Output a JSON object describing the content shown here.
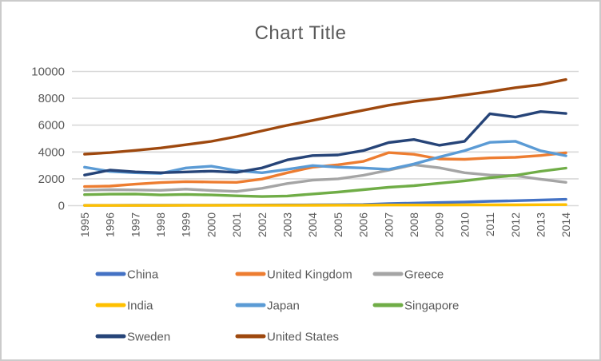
{
  "chart_data": {
    "type": "line",
    "title": "Chart Title",
    "xlabel": "",
    "ylabel": "",
    "ylim": [
      0,
      10000
    ],
    "y_ticks": [
      0,
      2000,
      4000,
      6000,
      8000,
      10000
    ],
    "grid": true,
    "legend_position": "bottom",
    "categories": [
      "1995",
      "1996",
      "1997",
      "1998",
      "1999",
      "2000",
      "2001",
      "2002",
      "2003",
      "2004",
      "2005",
      "2006",
      "2007",
      "2008",
      "2009",
      "2010",
      "2011",
      "2012",
      "2013",
      "2014"
    ],
    "series": [
      {
        "name": "China",
        "color": "#4472C4",
        "values": [
          21,
          25,
          28,
          31,
          34,
          37,
          42,
          47,
          52,
          60,
          71,
          82,
          150,
          190,
          230,
          270,
          330,
          370,
          420,
          470
        ]
      },
      {
        "name": "United Kingdom",
        "color": "#ED7D31",
        "values": [
          1420,
          1460,
          1600,
          1720,
          1790,
          1760,
          1740,
          1980,
          2450,
          2870,
          3050,
          3300,
          3950,
          3830,
          3480,
          3450,
          3560,
          3600,
          3740,
          3940
        ]
      },
      {
        "name": "Greece",
        "color": "#A5A5A5",
        "values": [
          1150,
          1190,
          1170,
          1140,
          1230,
          1130,
          1060,
          1290,
          1650,
          1900,
          2000,
          2260,
          2640,
          3050,
          2820,
          2450,
          2280,
          2230,
          1970,
          1740
        ]
      },
      {
        "name": "India",
        "color": "#FFC000",
        "values": [
          16,
          17,
          18,
          20,
          21,
          21,
          22,
          24,
          26,
          30,
          34,
          38,
          45,
          48,
          50,
          57,
          62,
          61,
          69,
          75
        ]
      },
      {
        "name": "Japan",
        "color": "#5B9BD5",
        "values": [
          2870,
          2550,
          2450,
          2400,
          2810,
          2940,
          2620,
          2450,
          2700,
          2990,
          2870,
          2810,
          2700,
          3110,
          3620,
          4100,
          4720,
          4800,
          4090,
          3720
        ]
      },
      {
        "name": "Singapore",
        "color": "#70AD47",
        "values": [
          820,
          860,
          870,
          800,
          840,
          800,
          730,
          680,
          720,
          870,
          1010,
          1190,
          1370,
          1490,
          1670,
          1850,
          2080,
          2260,
          2560,
          2800
        ]
      },
      {
        "name": "Sweden",
        "color": "#264478",
        "values": [
          2280,
          2650,
          2520,
          2450,
          2510,
          2570,
          2480,
          2810,
          3410,
          3730,
          3780,
          4100,
          4700,
          4930,
          4500,
          4800,
          6850,
          6600,
          7010,
          6870
        ]
      },
      {
        "name": "United States",
        "color": "#9E480E",
        "values": [
          3840,
          3950,
          4120,
          4300,
          4540,
          4790,
          5150,
          5570,
          5990,
          6350,
          6740,
          7110,
          7480,
          7760,
          7990,
          8250,
          8500,
          8790,
          9020,
          9400
        ]
      }
    ]
  },
  "styles": {
    "text_color": "#595959",
    "gridline_color": "#D9D9D9",
    "axis_line_color": "#D9D9D9",
    "background": "#FFFFFF",
    "border_color": "#CBCBCB"
  }
}
